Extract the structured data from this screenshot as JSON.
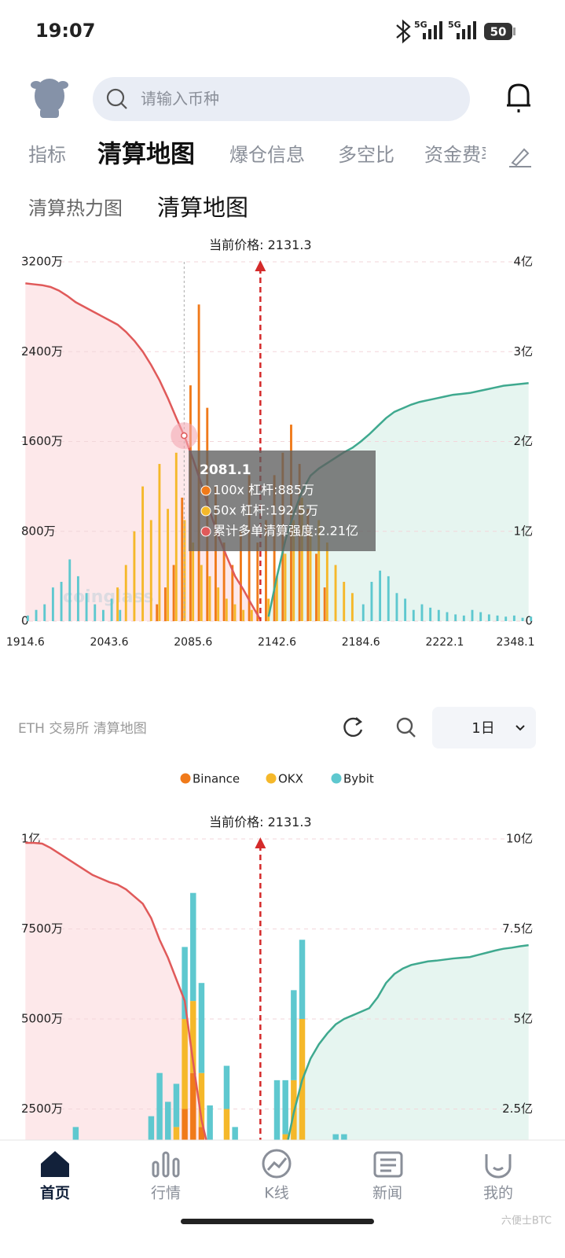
{
  "status": {
    "time": "19:07",
    "network": [
      "5G",
      "5G"
    ],
    "battery": "50"
  },
  "search": {
    "placeholder": "请输入币种"
  },
  "tabs": [
    "指标",
    "清算地图",
    "爆仓信息",
    "多空比",
    "资金费率"
  ],
  "subtabs": [
    "清算热力图",
    "清算地图"
  ],
  "section": {
    "title": "ETH 交易所 清算地图",
    "period": "1日"
  },
  "nav": [
    "首页",
    "行情",
    "K线",
    "新闻",
    "我的"
  ],
  "watermark": "六便士BTC",
  "chart_data": [
    {
      "type": "bar",
      "stacked": false,
      "grid": true,
      "watermark": "coinglass",
      "current_price_label": "当前价格:",
      "current_price": 2131.3,
      "categories": [
        "1914.6",
        null,
        null,
        null,
        null,
        null,
        null,
        null,
        null,
        null,
        "2043.6",
        null,
        null,
        null,
        null,
        null,
        null,
        null,
        null,
        null,
        "2085.6",
        null,
        null,
        null,
        null,
        null,
        null,
        null,
        null,
        null,
        "2142.6",
        null,
        null,
        null,
        null,
        null,
        null,
        null,
        null,
        null,
        "2184.6",
        null,
        null,
        null,
        null,
        null,
        null,
        null,
        null,
        null,
        "2222.1",
        null,
        null,
        null,
        null,
        null,
        null,
        null,
        null,
        null,
        "2348.1"
      ],
      "series": [
        {
          "color": "#f07a1a",
          "values": [
            0,
            0,
            0,
            0,
            0,
            0,
            0,
            0,
            0,
            0,
            0,
            0,
            0,
            0,
            0,
            0,
            150,
            300,
            500,
            1100,
            2100,
            2820,
            1900,
            1200,
            700,
            500,
            800,
            1300,
            700,
            900,
            1300,
            1500,
            1750,
            1400,
            1000,
            600,
            300,
            0,
            0,
            0,
            0,
            0,
            0,
            0,
            0,
            0,
            0,
            0,
            0,
            0,
            0,
            0,
            0,
            0,
            0,
            0,
            0,
            0,
            0,
            0,
            0
          ]
        },
        {
          "color": "#f5b82a",
          "values": [
            0,
            0,
            0,
            0,
            0,
            0,
            0,
            0,
            0,
            0,
            0,
            300,
            500,
            800,
            1200,
            900,
            1400,
            1000,
            1500,
            900,
            700,
            500,
            400,
            300,
            200,
            150,
            100,
            100,
            0,
            200,
            400,
            600,
            900,
            1100,
            800,
            900,
            700,
            500,
            350,
            250,
            0,
            0,
            0,
            0,
            0,
            0,
            0,
            0,
            0,
            0,
            0,
            0,
            0,
            0,
            0,
            0,
            0,
            0,
            0,
            0,
            0
          ]
        },
        {
          "color": "#5ec8cf",
          "values": [
            50,
            100,
            150,
            300,
            350,
            550,
            400,
            250,
            150,
            100,
            200,
            100,
            0,
            0,
            0,
            0,
            0,
            0,
            0,
            0,
            0,
            0,
            0,
            0,
            0,
            0,
            0,
            0,
            0,
            0,
            0,
            0,
            0,
            0,
            0,
            0,
            0,
            0,
            0,
            0,
            150,
            350,
            450,
            400,
            250,
            200,
            100,
            150,
            120,
            100,
            80,
            60,
            50,
            100,
            80,
            60,
            50,
            40,
            50,
            30,
            40
          ]
        }
      ],
      "long_line": {
        "color": "#e05a5a",
        "fill": "#fde8ea",
        "axis": "y2",
        "values": [
          3.76,
          3.75,
          3.74,
          3.72,
          3.68,
          3.62,
          3.55,
          3.5,
          3.45,
          3.4,
          3.35,
          3.3,
          3.22,
          3.12,
          3.0,
          2.85,
          2.68,
          2.48,
          2.26,
          2.05,
          1.8,
          1.52,
          1.22,
          0.95,
          0.72,
          0.5,
          0.35,
          0.18,
          0.02,
          null,
          null,
          null,
          null,
          null,
          null,
          null,
          null,
          null,
          null,
          null,
          null,
          null,
          null,
          null,
          null,
          null,
          null,
          null,
          null,
          null,
          null,
          null,
          null,
          null,
          null,
          null,
          null,
          null,
          null,
          null,
          null
        ]
      },
      "short_line": {
        "color": "#3fa98f",
        "fill": "#e6f5f0",
        "axis": "y2",
        "values": [
          null,
          null,
          null,
          null,
          null,
          null,
          null,
          null,
          null,
          null,
          null,
          null,
          null,
          null,
          null,
          null,
          null,
          null,
          null,
          null,
          null,
          null,
          null,
          null,
          null,
          null,
          null,
          null,
          null,
          0.05,
          0.5,
          0.9,
          1.2,
          1.45,
          1.62,
          1.7,
          1.76,
          1.82,
          1.88,
          1.93,
          2.0,
          2.08,
          2.17,
          2.26,
          2.33,
          2.37,
          2.41,
          2.44,
          2.46,
          2.48,
          2.5,
          2.52,
          2.53,
          2.54,
          2.56,
          2.58,
          2.6,
          2.62,
          2.63,
          2.64,
          2.65
        ]
      },
      "ylim": [
        0,
        3200
      ],
      "yticks": [
        0,
        {
          "value": 800,
          "label": "800万"
        },
        {
          "value": 1600,
          "label": "1600万"
        },
        {
          "value": 2400,
          "label": "2400万"
        },
        {
          "value": 3200,
          "label": "3200万"
        }
      ],
      "y2lim": [
        0,
        4
      ],
      "y2ticks": [
        0,
        {
          "value": 1,
          "label": "1亿"
        },
        {
          "value": 2,
          "label": "2亿"
        },
        {
          "value": 3,
          "label": "3亿"
        },
        {
          "value": 4,
          "label": "4亿"
        }
      ],
      "tooltip": {
        "title": "2081.1",
        "items": [
          {
            "color": "#f07a1a",
            "text": "100x 杠杆:885万"
          },
          {
            "color": "#f5b82a",
            "text": "50x 杠杆:192.5万"
          },
          {
            "color": "#e05a5a",
            "text": "累计多单清算强度:2.21亿"
          }
        ]
      }
    },
    {
      "type": "bar",
      "stacked": true,
      "grid": true,
      "current_price_label": "当前价格:",
      "current_price": 2131.3,
      "series": [
        {
          "name": "Binance",
          "color": "#f07a1a",
          "values": [
            0,
            0,
            0,
            0,
            0,
            0,
            0,
            0,
            0,
            0,
            0,
            0,
            0,
            0,
            0,
            0,
            0,
            0,
            500,
            2500,
            3500,
            2000,
            800,
            300,
            0,
            0,
            0,
            0,
            0,
            0,
            0,
            300,
            800,
            1500,
            300,
            0,
            0,
            0,
            0,
            0,
            0,
            0,
            0,
            0,
            0,
            0,
            0,
            0,
            0,
            0,
            0,
            0,
            0,
            0,
            0,
            0,
            0,
            0,
            0,
            0,
            0
          ]
        },
        {
          "name": "OKX",
          "color": "#f5b82a",
          "values": [
            0,
            0,
            0,
            0,
            0,
            0,
            0,
            0,
            0,
            0,
            0,
            0,
            0,
            0,
            0,
            800,
            1500,
            1200,
            1500,
            2500,
            2000,
            1500,
            600,
            400,
            2500,
            1200,
            0,
            600,
            0,
            0,
            800,
            1500,
            2500,
            3500,
            800,
            300,
            0,
            0,
            0,
            0,
            0,
            0,
            0,
            0,
            0,
            0,
            0,
            0,
            0,
            0,
            0,
            0,
            0,
            0,
            0,
            0,
            0,
            0,
            0,
            0,
            0
          ]
        },
        {
          "name": "Bybit",
          "color": "#5ec8cf",
          "values": [
            0,
            0,
            0,
            0,
            0,
            0,
            2000,
            0,
            0,
            0,
            0,
            0,
            0,
            0,
            0,
            1500,
            2000,
            1500,
            1200,
            2000,
            3000,
            2500,
            1200,
            800,
            1200,
            800,
            0,
            500,
            0,
            0,
            2500,
            1500,
            2500,
            2200,
            400,
            0,
            0,
            1800,
            1800,
            0,
            0,
            0,
            0,
            0,
            0,
            0,
            0,
            0,
            0,
            0,
            0,
            0,
            0,
            0,
            0,
            0,
            0,
            0,
            0,
            0,
            0
          ]
        }
      ],
      "long_line": {
        "color": "#e05a5a",
        "fill": "#fde8ea",
        "axis": "y2",
        "values": [
          9.89,
          9.89,
          9.87,
          9.75,
          9.6,
          9.45,
          9.3,
          9.15,
          9.0,
          8.9,
          8.8,
          8.73,
          8.6,
          8.4,
          8.2,
          7.8,
          7.2,
          6.7,
          6.1,
          5.5,
          3.8,
          2.2,
          1.2,
          0.8,
          0.5,
          0.3,
          0.2,
          0.1,
          0.02,
          null,
          null,
          null,
          null,
          null,
          null,
          null,
          null,
          null,
          null,
          null,
          null,
          null,
          null,
          null,
          null,
          null,
          null,
          null,
          null,
          null,
          null,
          null,
          null,
          null,
          null,
          null,
          null,
          null,
          null,
          null,
          null
        ]
      },
      "short_line": {
        "color": "#3fa98f",
        "fill": "#e6f5f0",
        "axis": "y2",
        "values": [
          null,
          null,
          null,
          null,
          null,
          null,
          null,
          null,
          null,
          null,
          null,
          null,
          null,
          null,
          null,
          null,
          null,
          null,
          null,
          null,
          null,
          null,
          null,
          null,
          null,
          null,
          null,
          null,
          null,
          0.1,
          0.6,
          1.3,
          2.4,
          3.3,
          3.9,
          4.3,
          4.6,
          4.85,
          5.0,
          5.1,
          5.2,
          5.3,
          5.6,
          6.0,
          6.25,
          6.4,
          6.5,
          6.55,
          6.6,
          6.62,
          6.65,
          6.68,
          6.7,
          6.72,
          6.78,
          6.84,
          6.9,
          6.95,
          6.98,
          7.02,
          7.05
        ]
      },
      "ylim": [
        0,
        10000
      ],
      "yticks": [
        {
          "value": 2500,
          "label": "2500万"
        },
        {
          "value": 5000,
          "label": "5000万"
        },
        {
          "value": 7500,
          "label": "7500万"
        },
        {
          "value": 10000,
          "label": "1亿"
        }
      ],
      "y2lim": [
        0,
        10
      ],
      "y2ticks": [
        {
          "value": 2.5,
          "label": "2.5亿"
        },
        {
          "value": 5,
          "label": "5亿"
        },
        {
          "value": 7.5,
          "label": "7.5亿"
        },
        {
          "value": 10,
          "label": "10亿"
        }
      ]
    }
  ]
}
